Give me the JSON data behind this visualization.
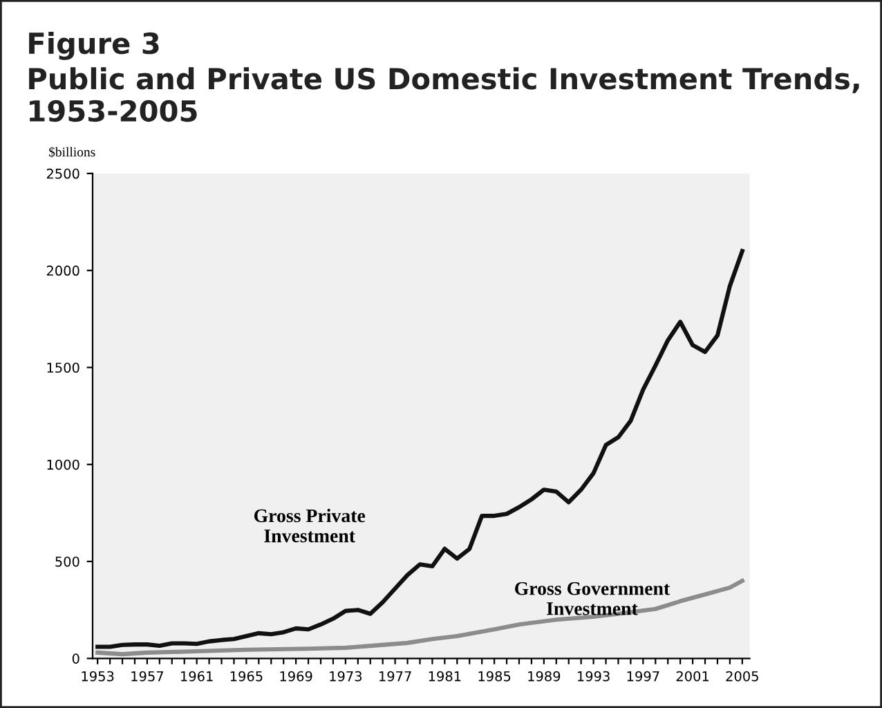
{
  "chart_data": {
    "type": "line",
    "title": "Figure 3",
    "subtitle": "Public and Private US Domestic Investment Trends, 1953-2005",
    "ylabel": "$billions",
    "xlim": [
      1952.6,
      2005.6
    ],
    "ylim": [
      0,
      2500
    ],
    "yticks": [
      0,
      500,
      1000,
      1500,
      2000,
      2500
    ],
    "xticks": [
      1953,
      {
        "value": 1954,
        "label": null
      },
      {
        "value": 1955,
        "label": null
      },
      {
        "value": 1956,
        "label": null
      },
      1957,
      {
        "value": 1958,
        "label": null
      },
      {
        "value": 1959,
        "label": null
      },
      {
        "value": 1960,
        "label": null
      },
      1961,
      {
        "value": 1962,
        "label": null
      },
      {
        "value": 1963,
        "label": null
      },
      {
        "value": 1964,
        "label": null
      },
      1965,
      {
        "value": 1966,
        "label": null
      },
      {
        "value": 1967,
        "label": null
      },
      {
        "value": 1968,
        "label": null
      },
      1969,
      {
        "value": 1970,
        "label": null
      },
      {
        "value": 1971,
        "label": null
      },
      {
        "value": 1972,
        "label": null
      },
      1973,
      {
        "value": 1974,
        "label": null
      },
      {
        "value": 1975,
        "label": null
      },
      {
        "value": 1976,
        "label": null
      },
      1977,
      {
        "value": 1978,
        "label": null
      },
      {
        "value": 1979,
        "label": null
      },
      {
        "value": 1980,
        "label": null
      },
      1981,
      {
        "value": 1982,
        "label": null
      },
      {
        "value": 1983,
        "label": null
      },
      {
        "value": 1984,
        "label": null
      },
      1985,
      {
        "value": 1986,
        "label": null
      },
      {
        "value": 1987,
        "label": null
      },
      {
        "value": 1988,
        "label": null
      },
      1989,
      {
        "value": 1990,
        "label": null
      },
      {
        "value": 1991,
        "label": null
      },
      {
        "value": 1992,
        "label": null
      },
      1993,
      {
        "value": 1994,
        "label": null
      },
      {
        "value": 1995,
        "label": null
      },
      {
        "value": 1996,
        "label": null
      },
      1997,
      {
        "value": 1998,
        "label": null
      },
      {
        "value": 1999,
        "label": null
      },
      {
        "value": 2000,
        "label": null
      },
      2001,
      {
        "value": 2002,
        "label": null
      },
      {
        "value": 2003,
        "label": null
      },
      {
        "value": 2004,
        "label": null
      },
      2005
    ],
    "grid": false,
    "legend": false,
    "marker": "none",
    "line_style": "solid",
    "series": [
      {
        "name": "Gross Private Investment",
        "color": "#111111",
        "x": [
          1953,
          1954,
          1955,
          1956,
          1957,
          1958,
          1959,
          1960,
          1961,
          1962,
          1963,
          1964,
          1965,
          1966,
          1967,
          1968,
          1969,
          1970,
          1971,
          1972,
          1973,
          1974,
          1975,
          1976,
          1977,
          1978,
          1979,
          1980,
          1981,
          1982,
          1983,
          1984,
          1985,
          1986,
          1987,
          1988,
          1989,
          1990,
          1991,
          1992,
          1993,
          1994,
          1995,
          1996,
          1997,
          1998,
          1999,
          2000,
          2001,
          2002,
          2003,
          2004,
          2005
        ],
        "values": [
          60,
          60,
          70,
          72,
          72,
          65,
          78,
          78,
          75,
          88,
          95,
          100,
          115,
          130,
          125,
          135,
          155,
          150,
          175,
          205,
          245,
          250,
          230,
          290,
          360,
          430,
          485,
          475,
          565,
          515,
          565,
          735,
          735,
          745,
          780,
          820,
          870,
          860,
          805,
          870,
          955,
          1100,
          1140,
          1225,
          1385,
          1510,
          1640,
          1735,
          1615,
          1580,
          1665,
          1920,
          2100
        ]
      },
      {
        "name": "Gross Government Investment",
        "color": "#8c8c8c",
        "x": [
          1953,
          1955,
          1957,
          1960,
          1965,
          1970,
          1973,
          1975,
          1978,
          1980,
          1982,
          1985,
          1987,
          1990,
          1993,
          1995,
          1998,
          2000,
          2002,
          2004,
          2005
        ],
        "values": [
          30,
          22,
          30,
          35,
          45,
          50,
          55,
          65,
          80,
          100,
          115,
          150,
          175,
          200,
          215,
          230,
          255,
          295,
          330,
          365,
          400
        ]
      }
    ]
  }
}
